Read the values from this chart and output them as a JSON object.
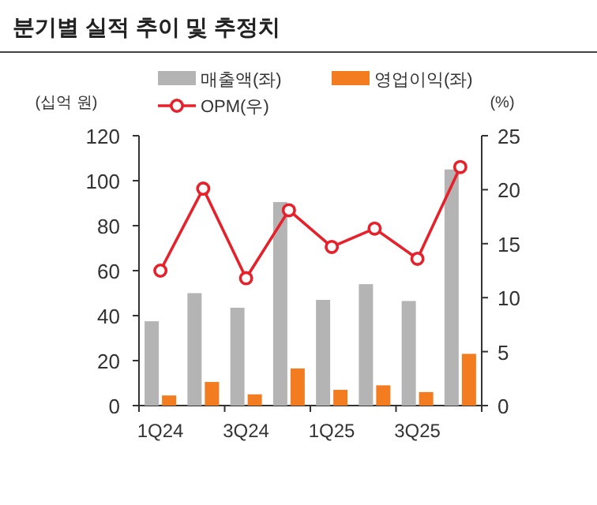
{
  "chart_data": {
    "type": "bar",
    "title": "분기별 실적 추이 및 추정치",
    "ylabel": "(십억 원)",
    "y2label": "(%)",
    "categories": [
      "1Q24",
      null,
      "3Q24",
      null,
      "1Q25",
      null,
      "3Q25",
      null
    ],
    "series": [
      {
        "name": "매출액(좌)",
        "color": "#b4b4b4",
        "values": [
          37.5,
          50,
          43.5,
          90.5,
          47,
          54,
          46.5,
          105
        ]
      },
      {
        "name": "영업이익(좌)",
        "color": "#f47c20",
        "values": [
          4.5,
          10.5,
          5,
          16.5,
          7,
          9,
          6,
          23
        ]
      },
      {
        "name": "OPM(우)",
        "type": "line",
        "axis": "y2",
        "color": "#e8202a",
        "marker": "circle",
        "values": [
          12.5,
          20.1,
          11.8,
          18.1,
          14.7,
          16.4,
          13.6,
          22.1
        ]
      }
    ],
    "ylim": [
      0,
      120
    ],
    "yticks": [
      0,
      20,
      40,
      60,
      80,
      100,
      120
    ],
    "y2lim": [
      0,
      25
    ],
    "y2ticks": [
      0,
      5,
      10,
      15,
      20,
      25
    ],
    "grid": false,
    "legend": "top"
  }
}
